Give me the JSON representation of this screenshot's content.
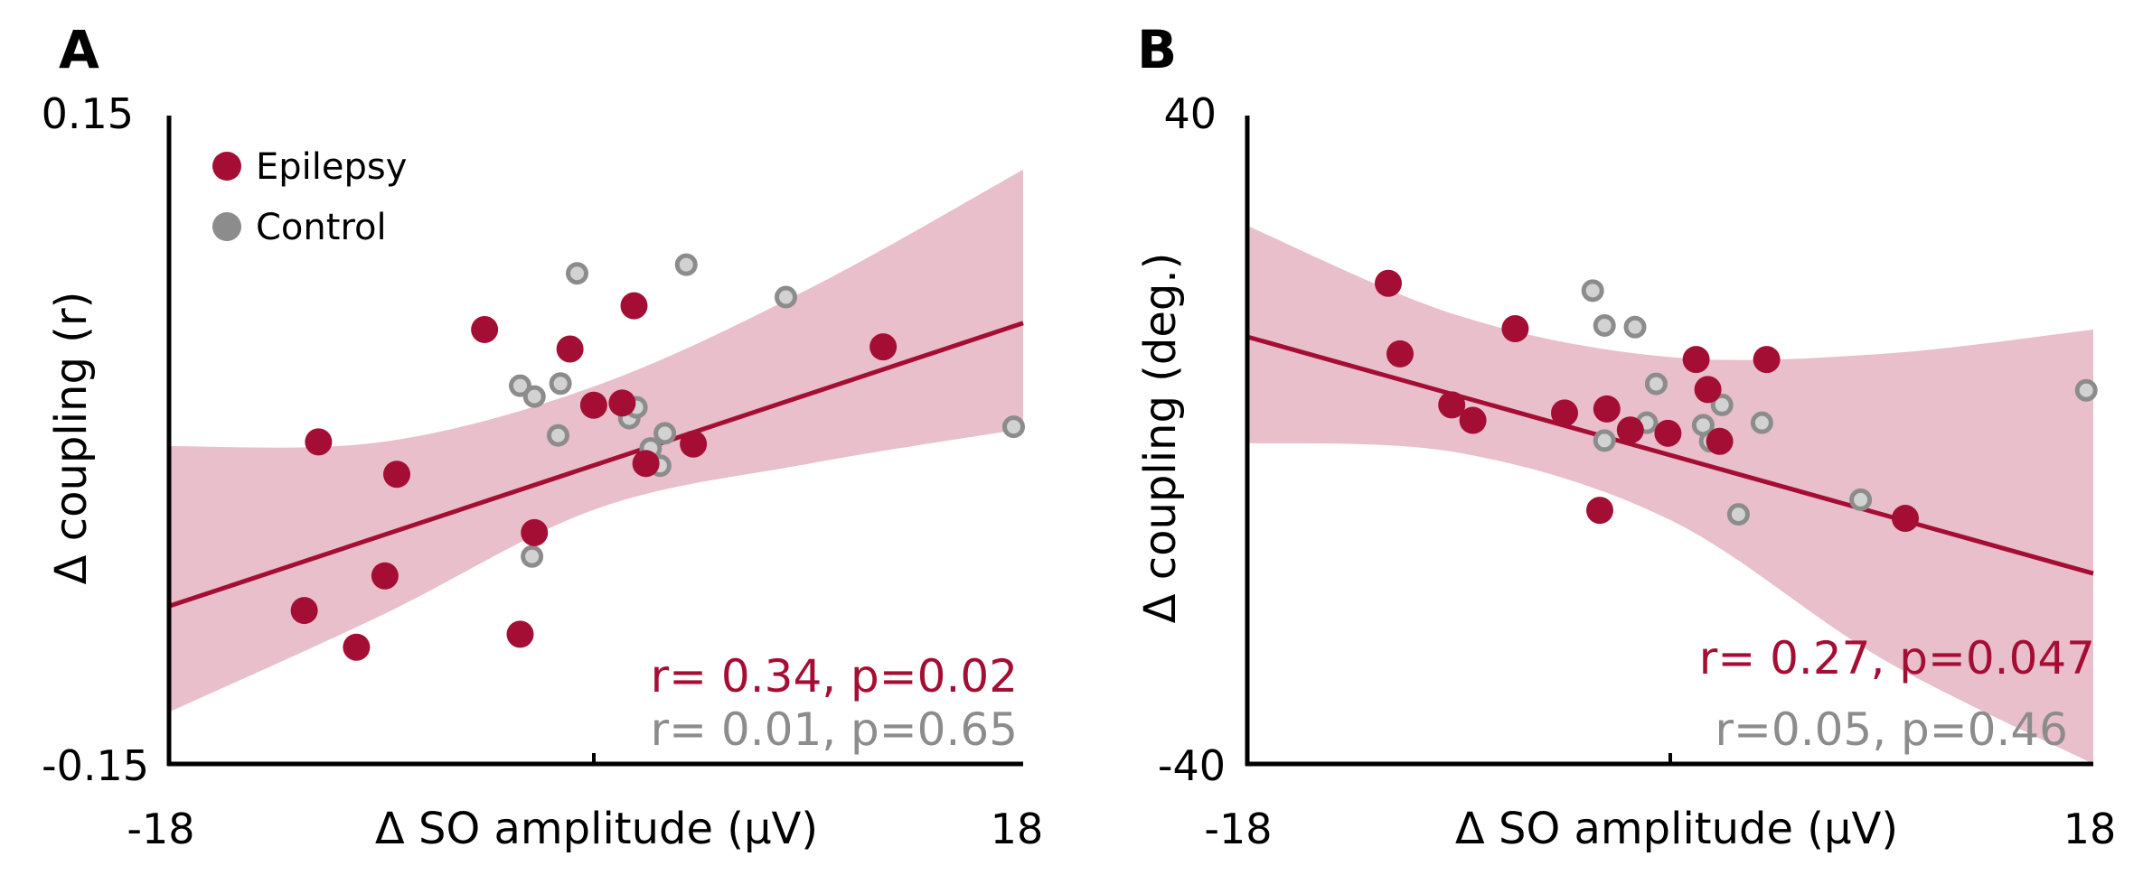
{
  "colors": {
    "epilepsy": "#a50e34",
    "control": "#8c8c8c",
    "control_face": "#d2d2d2",
    "band": "#e8bfca",
    "axis": "#000000"
  },
  "legend": {
    "epilepsy": "Epilepsy",
    "control": "Control"
  },
  "chart_data": [
    {
      "type": "scatter",
      "panel": "A",
      "xlabel": "Δ SO amplitude (μV)",
      "ylabel": "Δ coupling (r)",
      "xlim": [
        -18,
        18
      ],
      "ylim": [
        -0.15,
        0.15
      ],
      "x_tick_labels": [
        "-18",
        "18"
      ],
      "y_tick_labels": [
        "0.15",
        "-0.15"
      ],
      "legend_position": "top-left",
      "series": [
        {
          "name": "Epilepsy",
          "points": [
            [
              -12.3,
              -0.079
            ],
            [
              -11.7,
              -0.001
            ],
            [
              -10.1,
              -0.096
            ],
            [
              -8.9,
              -0.063
            ],
            [
              -8.4,
              -0.016
            ],
            [
              -4.7,
              0.051
            ],
            [
              -3.2,
              -0.09
            ],
            [
              -2.6,
              -0.043
            ],
            [
              -1.1,
              0.042
            ],
            [
              -0.1,
              0.016
            ],
            [
              1.1,
              0.017
            ],
            [
              1.6,
              0.062
            ],
            [
              2.1,
              -0.011
            ],
            [
              4.1,
              -0.002
            ],
            [
              12.1,
              0.043
            ]
          ]
        },
        {
          "name": "Control",
          "points": [
            [
              -3.2,
              0.025
            ],
            [
              -2.6,
              0.02
            ],
            [
              -1.6,
              0.002
            ],
            [
              -1.5,
              0.026
            ],
            [
              -2.7,
              -0.054
            ],
            [
              -0.8,
              0.077
            ],
            [
              1.4,
              0.01
            ],
            [
              1.7,
              0.015
            ],
            [
              2.3,
              -0.004
            ],
            [
              2.7,
              -0.012
            ],
            [
              2.9,
              0.003
            ],
            [
              3.8,
              0.081
            ],
            [
              8.0,
              0.066
            ],
            [
              17.6,
              0.006
            ]
          ]
        }
      ],
      "fit": {
        "x": [
          -18,
          18
        ],
        "y": [
          -0.077,
          0.054
        ]
      },
      "ci_band": {
        "x": [
          -18,
          -9,
          0,
          9,
          18
        ],
        "lower": [
          -0.126,
          -0.081,
          -0.032,
          -0.011,
          0.005
        ],
        "upper": [
          -0.003,
          -0.001,
          0.025,
          0.07,
          0.125
        ]
      },
      "stats": {
        "epilepsy": "r= 0.34, p=0.02",
        "control": "r= 0.01, p=0.65"
      }
    },
    {
      "type": "scatter",
      "panel": "B",
      "xlabel": "Δ SO amplitude (μV)",
      "ylabel": "Δ coupling (deg.)",
      "xlim": [
        -18,
        18
      ],
      "ylim": [
        -40,
        40
      ],
      "x_tick_labels": [
        "-18",
        "18"
      ],
      "y_tick_labels": [
        "40",
        "-40"
      ],
      "series": [
        {
          "name": "Epilepsy",
          "points": [
            [
              -12.0,
              19.3
            ],
            [
              -11.5,
              10.6
            ],
            [
              -9.3,
              4.3
            ],
            [
              -8.4,
              2.4
            ],
            [
              -6.6,
              13.7
            ],
            [
              -4.5,
              3.3
            ],
            [
              -3.0,
              -8.7
            ],
            [
              -2.7,
              3.8
            ],
            [
              -1.7,
              1.2
            ],
            [
              -0.1,
              0.8
            ],
            [
              1.1,
              9.9
            ],
            [
              1.6,
              6.2
            ],
            [
              2.1,
              -0.2
            ],
            [
              4.1,
              9.9
            ],
            [
              10.0,
              -9.7
            ]
          ]
        },
        {
          "name": "Control",
          "points": [
            [
              -3.3,
              18.4
            ],
            [
              -2.8,
              14.1
            ],
            [
              -1.5,
              13.9
            ],
            [
              -1.0,
              2.1
            ],
            [
              -2.8,
              -0.1
            ],
            [
              -0.6,
              6.9
            ],
            [
              1.4,
              1.8
            ],
            [
              1.7,
              -0.2
            ],
            [
              2.2,
              4.3
            ],
            [
              2.9,
              -9.2
            ],
            [
              3.9,
              2.1
            ],
            [
              8.1,
              -7.4
            ],
            [
              17.7,
              6.1
            ]
          ]
        }
      ],
      "fit": {
        "x": [
          -18,
          18
        ],
        "y": [
          12.7,
          -16.5
        ]
      },
      "ci_band": {
        "x": [
          -18,
          -9,
          0,
          9,
          18
        ],
        "lower": [
          -0.4,
          -1.6,
          -9.9,
          -27.0,
          -40.0
        ],
        "upper": [
          26.4,
          15.3,
          10.2,
          10.6,
          13.6
        ]
      },
      "stats": {
        "epilepsy": "r= 0.27, p=0.047",
        "control": "r=0.05,  p=0.46"
      }
    }
  ]
}
